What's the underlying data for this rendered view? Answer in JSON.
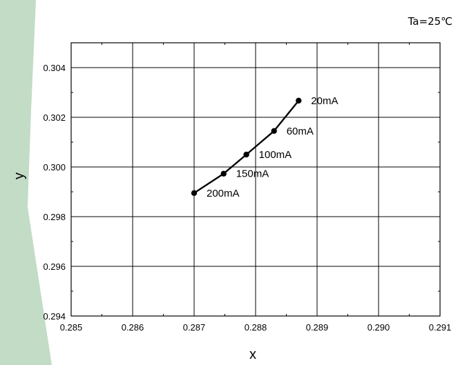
{
  "chart_data": {
    "type": "line",
    "title": "",
    "annotation": "Ta=25℃",
    "xlabel": "x",
    "ylabel": "y",
    "xlim": [
      0.285,
      0.291
    ],
    "ylim": [
      0.294,
      0.305
    ],
    "x_ticks": [
      "0.285",
      "0.286",
      "0.287",
      "0.288",
      "0.289",
      "0.290",
      "0.291"
    ],
    "y_ticks": [
      "0.294",
      "0.296",
      "0.298",
      "0.300",
      "0.302",
      "0.304"
    ],
    "grid": true,
    "series": [
      {
        "points": [
          {
            "x": 0.2887,
            "y": 0.30267,
            "label": "20mA"
          },
          {
            "x": 0.2883,
            "y": 0.30145,
            "label": "60mA"
          },
          {
            "x": 0.28785,
            "y": 0.3005,
            "label": "100mA"
          },
          {
            "x": 0.28748,
            "y": 0.29973,
            "label": "150mA"
          },
          {
            "x": 0.287,
            "y": 0.29895,
            "label": "200mA"
          }
        ]
      }
    ]
  },
  "colors": {
    "background_band": "#c2dcc6",
    "line": "#000000",
    "grid": "#000000"
  }
}
